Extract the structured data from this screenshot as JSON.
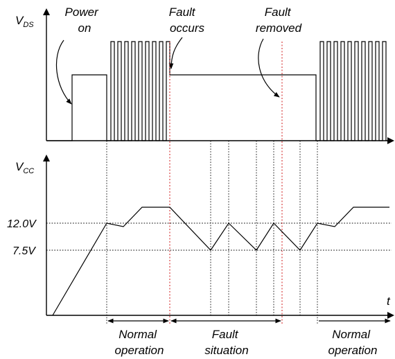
{
  "annotations": {
    "power_on": [
      "Power",
      "on"
    ],
    "fault_occurs": [
      "Fault",
      "occurs"
    ],
    "fault_removed": [
      "Fault",
      "removed"
    ]
  },
  "axes": {
    "vds_main": "V",
    "vds_sub": "DS",
    "vcc_main": "V",
    "vcc_sub": "CC",
    "time": "t"
  },
  "levels": {
    "high": "12.0V",
    "low": "7.5V"
  },
  "phases": {
    "normal_1": [
      "Normal",
      "operation"
    ],
    "fault": [
      "Fault",
      "situation"
    ],
    "normal_2": [
      "Normal",
      "operation"
    ]
  },
  "colors": {
    "line": "#000000",
    "fault_marker": "#d01818"
  }
}
